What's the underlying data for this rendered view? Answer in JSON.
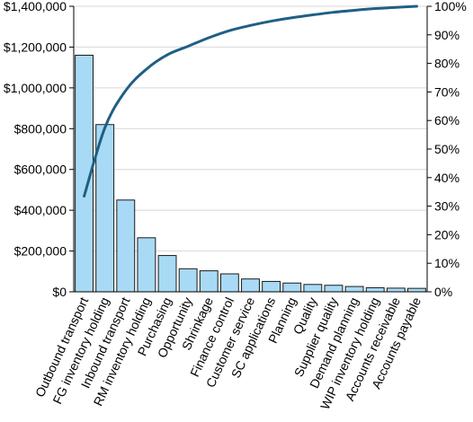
{
  "chart_data": {
    "type": "bar",
    "categories": [
      "Outbound transport",
      "FG inventory holding",
      "Inbound transport",
      "RM inventory holding",
      "Purchasing",
      "Opportunity",
      "Shrinkage",
      "Finance control",
      "Customer service",
      "SC applications",
      "Planning",
      "Quality",
      "Supplier quality",
      "Demand planning",
      "WIP inventory holding",
      "Accounts receivable",
      "Accounts payable"
    ],
    "series": [
      {
        "type": "bar",
        "axis": "left",
        "values": [
          1160000,
          820000,
          450000,
          265000,
          178000,
          113000,
          103000,
          88000,
          63000,
          51000,
          43000,
          36000,
          32000,
          26000,
          20000,
          18000,
          17000
        ]
      },
      {
        "type": "line",
        "axis": "right",
        "values": [
          33.5,
          57.5,
          70.5,
          78.0,
          83.0,
          86.0,
          89.0,
          91.5,
          93.3,
          94.8,
          96.0,
          97.0,
          97.9,
          98.6,
          99.2,
          99.6,
          100.0
        ]
      }
    ],
    "y_left": {
      "ylim": [
        0,
        1400000
      ],
      "ticks": [
        0,
        200000,
        400000,
        600000,
        800000,
        1000000,
        1200000,
        1400000
      ],
      "tick_labels": [
        "$0",
        "$200,000",
        "$400,000",
        "$600,000",
        "$800,000",
        "$1,000,000",
        "$1,200,000",
        "$1,400,000"
      ]
    },
    "y_right": {
      "ylim": [
        0,
        100
      ],
      "ticks": [
        0,
        10,
        20,
        30,
        40,
        50,
        60,
        70,
        80,
        90,
        100
      ],
      "tick_labels": [
        "0%",
        "10%",
        "20%",
        "30%",
        "40%",
        "50%",
        "60%",
        "70%",
        "80%",
        "90%",
        "100%"
      ]
    },
    "grid": "horizontal",
    "legend": "none",
    "colors": {
      "bar_fill": "#a8daf5",
      "bar_stroke": "#1a1a1a",
      "line": "#1f5f85",
      "grid": "#d8d8d8"
    }
  }
}
